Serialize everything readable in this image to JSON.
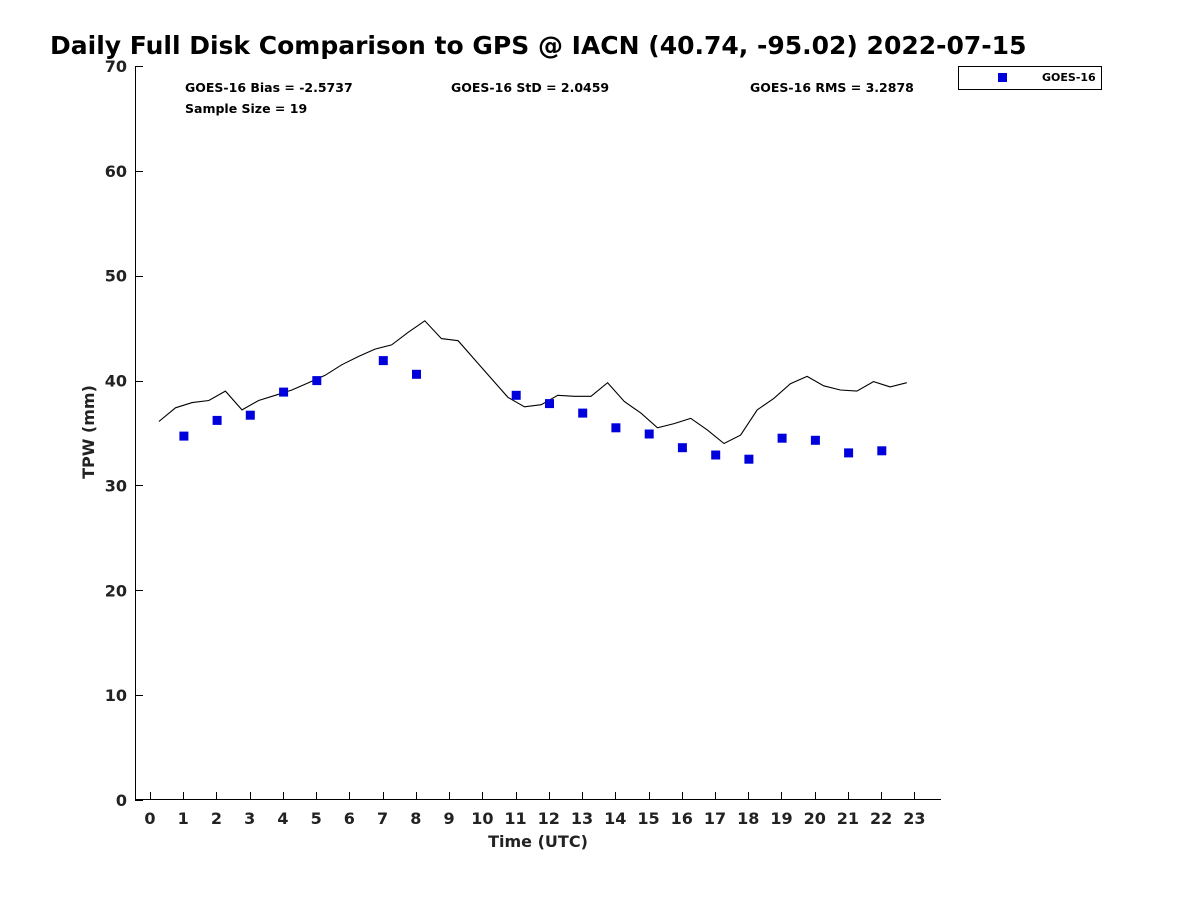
{
  "colors": {
    "series_marker": "#0000dd",
    "gps_line": "#000000",
    "axis": "#000000"
  },
  "chart_data": {
    "type": "scatter",
    "title": "Daily Full Disk Comparison to GPS @ IACN (40.74, -95.02) 2022-07-15",
    "xlabel": "Time (UTC)",
    "ylabel": "TPW (mm)",
    "xlim": [
      -0.45,
      23.8
    ],
    "ylim": [
      0,
      70
    ],
    "xticks": [
      0,
      1,
      2,
      3,
      4,
      5,
      6,
      7,
      8,
      9,
      10,
      11,
      12,
      13,
      14,
      15,
      16,
      17,
      18,
      19,
      20,
      21,
      22,
      23
    ],
    "yticks": [
      0,
      10,
      20,
      30,
      40,
      50,
      60,
      70
    ],
    "grid": false,
    "legend_position": "top-right, outside plot area",
    "stats": {
      "bias": "GOES-16 Bias = -2.5737",
      "std": "GOES-16 StD = 2.0459",
      "rms": "GOES-16 RMS = 3.2878",
      "sample": "Sample Size = 19"
    },
    "series": [
      {
        "name": "GOES-16",
        "marker": "square",
        "color": "#0000dd",
        "x": [
          1.02,
          2.02,
          3.02,
          4.02,
          5.02,
          7.02,
          8.02,
          11.02,
          12.02,
          13.02,
          14.02,
          15.02,
          16.02,
          17.02,
          18.02,
          19.02,
          20.02,
          21.02,
          22.02
        ],
        "y": [
          34.7,
          36.2,
          36.7,
          38.9,
          40.0,
          41.9,
          40.6,
          38.6,
          37.8,
          36.9,
          35.5,
          34.9,
          33.6,
          32.9,
          32.5,
          34.5,
          34.3,
          33.1,
          33.3
        ]
      },
      {
        "marker": "line",
        "color": "#000000",
        "x": [
          0.27,
          0.77,
          1.27,
          1.77,
          2.27,
          2.77,
          3.27,
          3.77,
          4.27,
          4.77,
          5.27,
          5.77,
          6.27,
          6.77,
          7.27,
          7.77,
          8.27,
          8.77,
          9.27,
          9.77,
          10.27,
          10.77,
          11.27,
          11.77,
          12.27,
          12.77,
          13.27,
          13.77,
          14.27,
          14.77,
          15.27,
          15.77,
          16.27,
          16.77,
          17.27,
          17.77,
          18.27,
          18.77,
          19.27,
          19.77,
          20.27,
          20.77,
          21.27,
          21.77,
          22.27,
          22.77
        ],
        "y": [
          36.1,
          37.4,
          37.9,
          38.1,
          39.0,
          37.2,
          38.1,
          38.6,
          39.1,
          39.8,
          40.5,
          41.5,
          42.3,
          43.0,
          43.4,
          44.6,
          45.7,
          44.0,
          43.8,
          42.0,
          40.2,
          38.4,
          37.5,
          37.7,
          38.6,
          38.5,
          38.5,
          39.8,
          38.0,
          36.9,
          35.5,
          35.9,
          36.4,
          35.3,
          34.0,
          34.8,
          37.2,
          38.3,
          39.7,
          40.4,
          39.5,
          39.1,
          39.0,
          39.9,
          39.4,
          39.8
        ]
      }
    ]
  }
}
